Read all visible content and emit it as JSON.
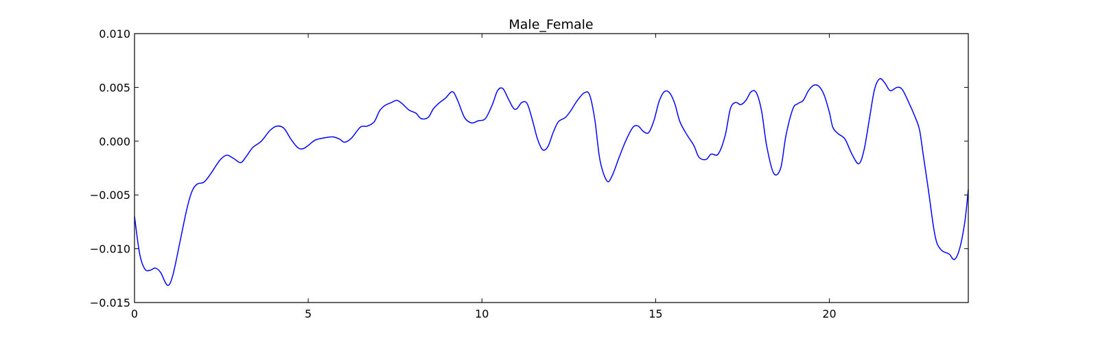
{
  "chart_data": {
    "type": "line",
    "title": "Male_Female",
    "xlabel": "",
    "ylabel": "",
    "xlim": [
      0,
      24
    ],
    "ylim": [
      -0.015,
      0.01
    ],
    "xticks": [
      0,
      5,
      10,
      15,
      20
    ],
    "xtick_labels": [
      "0",
      "5",
      "10",
      "15",
      "20"
    ],
    "yticks": [
      -0.015,
      -0.01,
      -0.005,
      0.0,
      0.005,
      0.01
    ],
    "ytick_labels": [
      "−0.015",
      "−0.010",
      "−0.005",
      "0.000",
      "0.005",
      "0.010"
    ],
    "grid": false,
    "series": [
      {
        "color": "#0000ff",
        "x": [
          0.0,
          0.15,
          0.3,
          0.45,
          0.6,
          0.75,
          0.95,
          1.1,
          1.3,
          1.5,
          1.65,
          1.8,
          2.0,
          2.2,
          2.45,
          2.65,
          2.85,
          3.05,
          3.2,
          3.4,
          3.65,
          3.9,
          4.1,
          4.3,
          4.5,
          4.7,
          4.85,
          5.0,
          5.2,
          5.45,
          5.7,
          5.9,
          6.05,
          6.25,
          6.5,
          6.7,
          6.9,
          7.05,
          7.2,
          7.4,
          7.55,
          7.7,
          7.9,
          8.1,
          8.25,
          8.45,
          8.6,
          8.75,
          8.95,
          9.15,
          9.3,
          9.5,
          9.7,
          9.9,
          10.1,
          10.3,
          10.45,
          10.6,
          10.75,
          10.9,
          11.0,
          11.15,
          11.3,
          11.45,
          11.6,
          11.75,
          11.9,
          12.05,
          12.2,
          12.4,
          12.55,
          12.75,
          12.95,
          13.1,
          13.25,
          13.4,
          13.6,
          13.75,
          13.95,
          14.15,
          14.35,
          14.5,
          14.65,
          14.8,
          14.95,
          15.1,
          15.25,
          15.4,
          15.55,
          15.7,
          15.9,
          16.1,
          16.25,
          16.45,
          16.6,
          16.8,
          17.0,
          17.15,
          17.3,
          17.45,
          17.6,
          17.75,
          17.9,
          18.05,
          18.2,
          18.4,
          18.6,
          18.75,
          18.95,
          19.1,
          19.25,
          19.4,
          19.55,
          19.7,
          19.85,
          20.0,
          20.1,
          20.25,
          20.45,
          20.65,
          20.85,
          21.0,
          21.15,
          21.3,
          21.45,
          21.6,
          21.75,
          21.95,
          22.1,
          22.3,
          22.5,
          22.6,
          22.7,
          22.85,
          23.0,
          23.1,
          23.25,
          23.45,
          23.6,
          23.75,
          23.9,
          24.0
        ],
        "y": [
          -0.007,
          -0.0105,
          -0.0119,
          -0.012,
          -0.0118,
          -0.0122,
          -0.0134,
          -0.0125,
          -0.0095,
          -0.0064,
          -0.0047,
          -0.004,
          -0.0038,
          -0.003,
          -0.0018,
          -0.0013,
          -0.0016,
          -0.002,
          -0.0015,
          -0.0006,
          0.0,
          0.001,
          0.0014,
          0.0012,
          0.0002,
          -0.0006,
          -0.0007,
          -0.0004,
          0.0001,
          0.0003,
          0.0004,
          0.0002,
          -0.0001,
          0.0003,
          0.0013,
          0.0014,
          0.0018,
          0.0028,
          0.0033,
          0.0036,
          0.0038,
          0.0035,
          0.0029,
          0.0026,
          0.0021,
          0.0022,
          0.003,
          0.0035,
          0.004,
          0.0046,
          0.0038,
          0.0022,
          0.0017,
          0.0019,
          0.0021,
          0.0034,
          0.0047,
          0.0049,
          0.004,
          0.0031,
          0.003,
          0.0036,
          0.0035,
          0.002,
          0.0002,
          -0.0008,
          -0.0005,
          0.0008,
          0.0018,
          0.0022,
          0.0028,
          0.0038,
          0.0045,
          0.0043,
          0.002,
          -0.0018,
          -0.0037,
          -0.0032,
          -0.0015,
          0.0001,
          0.0013,
          0.0014,
          0.0009,
          0.0008,
          0.0019,
          0.0037,
          0.0046,
          0.0045,
          0.0035,
          0.0018,
          0.0006,
          -0.0004,
          -0.0015,
          -0.0017,
          -0.0012,
          -0.0012,
          0.0005,
          0.003,
          0.0036,
          0.0034,
          0.0038,
          0.0046,
          0.0045,
          0.0028,
          -0.0005,
          -0.003,
          -0.0025,
          0.0005,
          0.003,
          0.0035,
          0.0038,
          0.0047,
          0.0052,
          0.0051,
          0.0043,
          0.0027,
          0.0013,
          0.0007,
          0.0002,
          -0.0012,
          -0.0021,
          -0.0008,
          0.002,
          0.0048,
          0.0058,
          0.0054,
          0.0047,
          0.005,
          0.0048,
          0.0035,
          0.002,
          0.001,
          -0.0012,
          -0.0045,
          -0.008,
          -0.0095,
          -0.0102,
          -0.0105,
          -0.011,
          -0.01,
          -0.0075,
          -0.0045
        ]
      }
    ]
  }
}
